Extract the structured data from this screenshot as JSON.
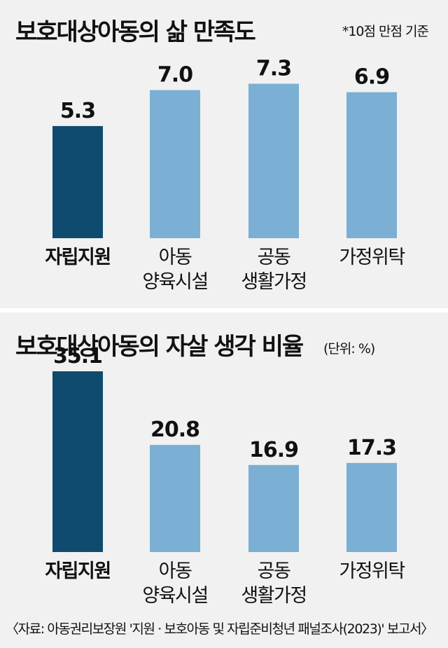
{
  "charts": [
    {
      "title": "보호대상아동의 삶 만족도",
      "note": "*10점 만점 기준"
    },
    {
      "title": "보호대상아동의 자살 생각 비율",
      "note": "(단위: %)"
    }
  ],
  "chart_data": [
    {
      "type": "bar",
      "title": "보호대상아동의 삶 만족도",
      "note": "*10점 만점 기준",
      "categories": [
        "자립지원",
        "아동\n양육시설",
        "공동\n생활가정",
        "가정위탁"
      ],
      "values": [
        5.3,
        7.0,
        7.3,
        6.9
      ],
      "value_labels": [
        "5.3",
        "7.0",
        "7.3",
        "6.9"
      ],
      "highlight_index": 0,
      "colors": {
        "highlight": "#0e4b6e",
        "normal": "#7bafd4"
      },
      "ylim": [
        0,
        10
      ],
      "grid": false,
      "legend": "none"
    },
    {
      "type": "bar",
      "title": "보호대상아동의 자살 생각 비율",
      "note": "(단위: %)",
      "categories": [
        "자립지원",
        "아동\n양육시설",
        "공동\n생활가정",
        "가정위탁"
      ],
      "values": [
        35.1,
        20.8,
        16.9,
        17.3
      ],
      "value_labels": [
        "35.1",
        "20.8",
        "16.9",
        "17.3"
      ],
      "highlight_index": 0,
      "colors": {
        "highlight": "#0e4b6e",
        "normal": "#7bafd4"
      },
      "ylim": [
        0,
        40
      ],
      "grid": false,
      "legend": "none"
    }
  ],
  "source": "〈자료: 아동권리보장원 '지원 · 보호아동 및 자립준비청년 패널조사(2023)' 보고서〉"
}
